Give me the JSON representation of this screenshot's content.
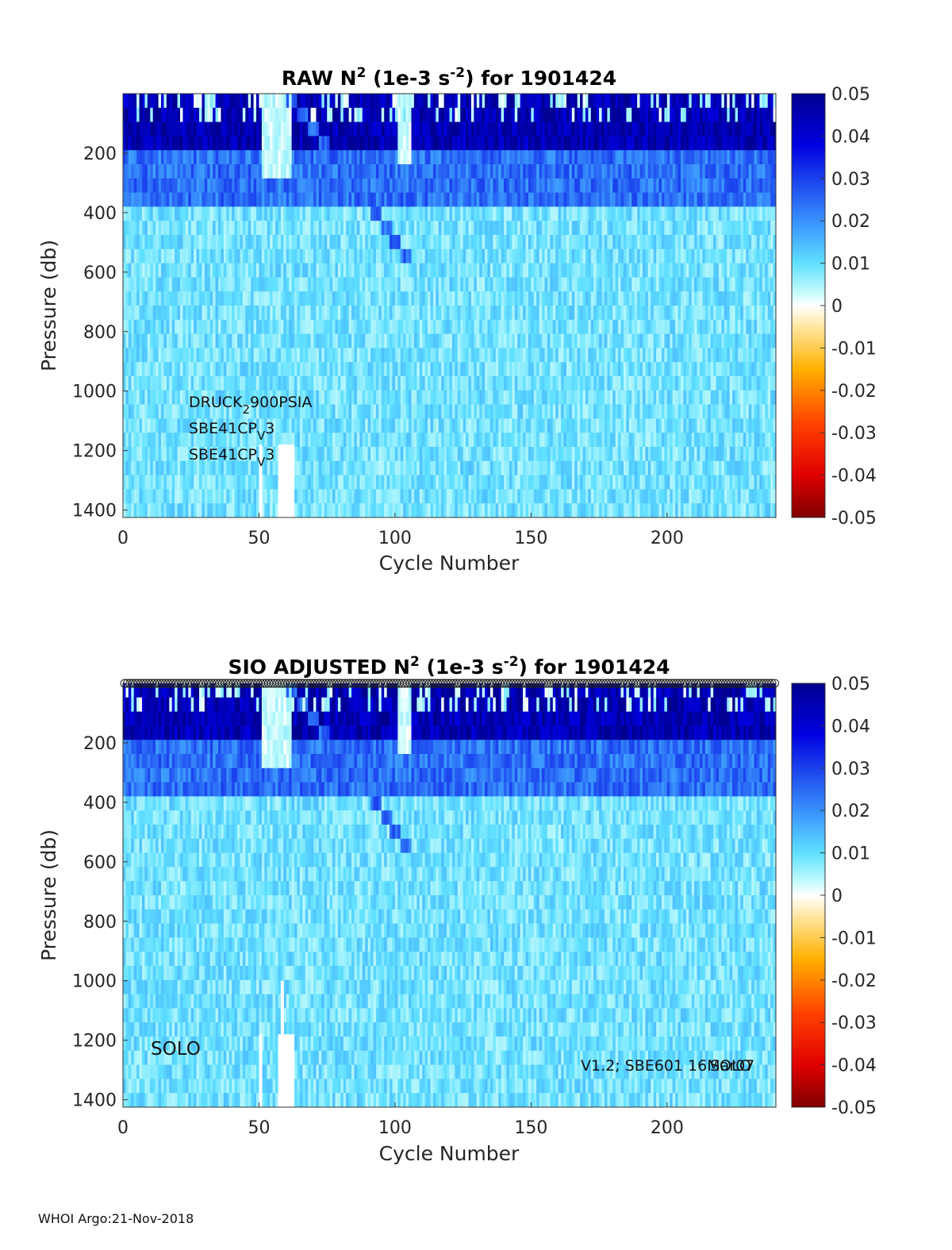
{
  "footer": "WHOI Argo:21-Nov-2018",
  "chart_data": [
    {
      "type": "heatmap",
      "title_parts": [
        "RAW N",
        "2",
        " (1e-3 s",
        "-2",
        ") for 1901424"
      ],
      "xlabel": "Cycle Number",
      "ylabel": "Pressure (db)",
      "xlim": [
        0,
        240
      ],
      "ylim": [
        0,
        1425
      ],
      "y_reversed": true,
      "xticks": [
        0,
        50,
        100,
        150,
        200
      ],
      "yticks": [
        200,
        400,
        600,
        800,
        1000,
        1200,
        1400
      ],
      "colorbar": {
        "range": [
          -0.05,
          0.05
        ],
        "ticks": [
          "0.05",
          "0.04",
          "0.03",
          "0.02",
          "0.01",
          "0",
          "-0.01",
          "-0.02",
          "-0.03",
          "-0.04",
          "-0.05"
        ],
        "colormap": "jet-with-white-center"
      },
      "annotations": [
        {
          "base": "DRUCK",
          "sub": "2",
          "rest": "900PSIA"
        },
        {
          "base": "SBE41CP",
          "sub": "V",
          "rest": "3"
        },
        {
          "base": "SBE41CP",
          "sub": "V",
          "rest": "3"
        }
      ],
      "data_description": {
        "surface_layer_0_200db": "strong positive N2 (~0.04-0.05)",
        "layer_200_400db": "moderate (~0.02-0.03)",
        "below_400db": "weak (~0.005-0.015)",
        "low_stratification_plume_cycles": [
          50,
          105
        ],
        "missing_data_cycles": [
          50,
          58,
          62
        ]
      }
    },
    {
      "type": "heatmap",
      "title_parts": [
        "SIO  ADJUSTED N",
        "2",
        " (1e-3 s",
        "-2",
        ") for 1901424"
      ],
      "xlabel": "Cycle Number",
      "ylabel": "Pressure (db)",
      "xlim": [
        0,
        240
      ],
      "ylim": [
        0,
        1425
      ],
      "y_reversed": true,
      "xticks": [
        0,
        50,
        100,
        150,
        200
      ],
      "yticks": [
        200,
        400,
        600,
        800,
        1000,
        1200,
        1400
      ],
      "colorbar": {
        "range": [
          -0.05,
          0.05
        ],
        "ticks": [
          "0.05",
          "0.04",
          "0.03",
          "0.02",
          "0.01",
          "0",
          "-0.01",
          "-0.02",
          "-0.03",
          "-0.04",
          "-0.05"
        ],
        "colormap": "jet-with-white-center"
      },
      "annotations_left": "SOLO",
      "annotations_right": "V1.2; SBE601 16Mar07",
      "annotations_right_overlap": "SOLO",
      "qc_marker_row": "o (one per cycle at surface)"
    }
  ]
}
